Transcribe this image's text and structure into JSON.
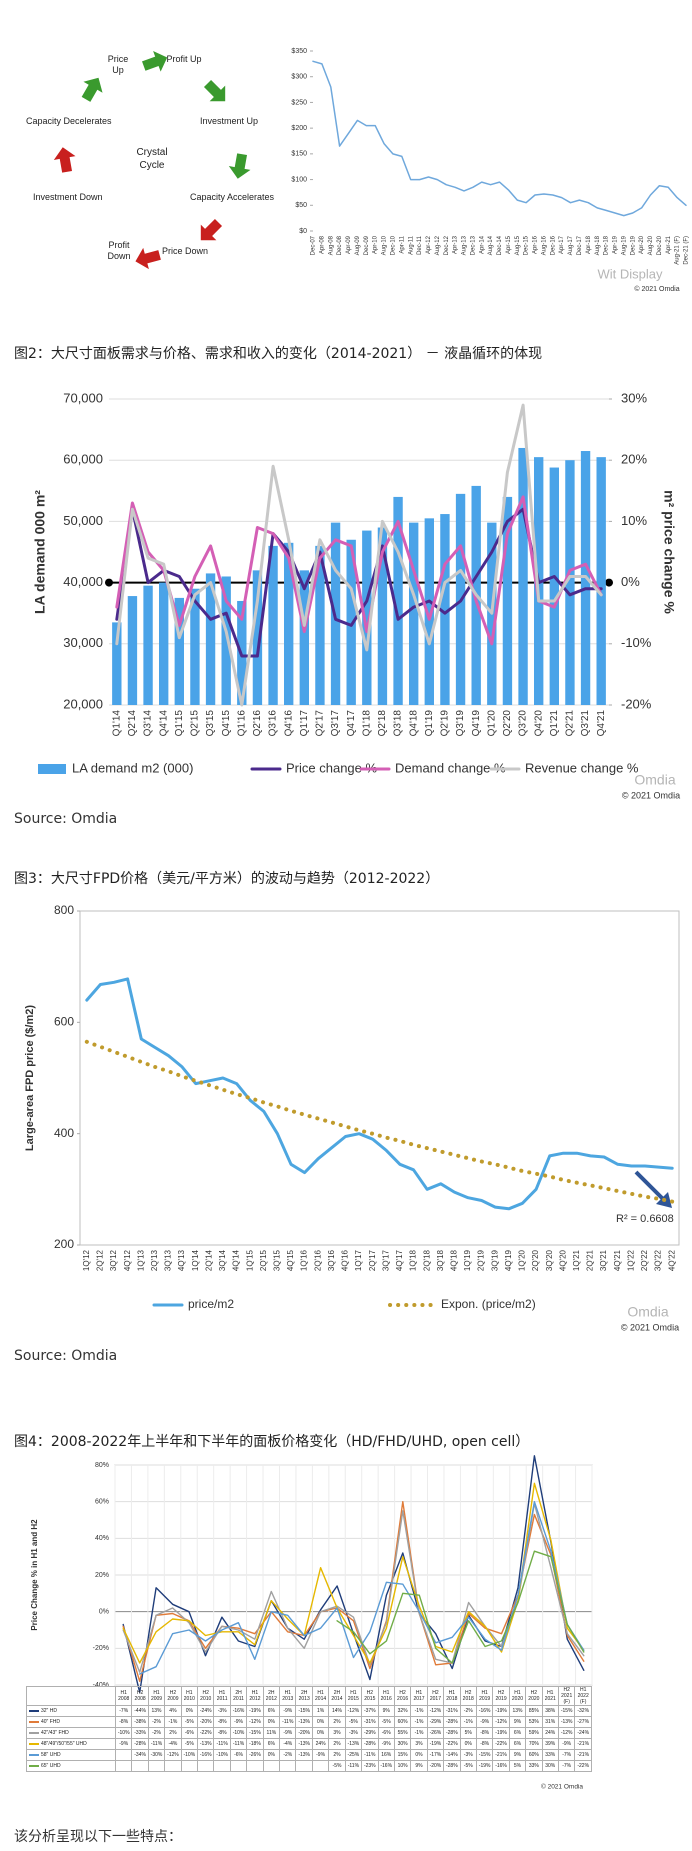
{
  "cycle_diagram": {
    "center": "Crystal Cycle",
    "labels": [
      "Price Up",
      "Profit Up",
      "Investment Up",
      "Capacity Accelerates",
      "Price Down",
      "Profit Down",
      "Investment Down",
      "Capacity Decelerates"
    ]
  },
  "captions": [
    "图2：大尺寸面板需求与价格、需求和收入的变化（2014-2021） － 液晶循环的体现",
    "图3：大尺寸FPD价格（美元/平方米）的波动与趋势（2012-2022）",
    "图4：2008-2022年上半年和下半年的面板价格变化（HD/FHD/UHD, open cell）"
  ],
  "sources": [
    "Source: Omdia",
    "Source: Omdia"
  ],
  "closing_text": "该分析呈现以下一些特点：",
  "chart_data": [
    {
      "type": "line",
      "categories": [
        "Dec-07",
        "Apr-08",
        "Aug-08",
        "Dec-08",
        "Apr-09",
        "Aug-09",
        "Dec-09",
        "Apr-10",
        "Aug-10",
        "Dec-10",
        "Apr-11",
        "Aug-11",
        "Dec-11",
        "Apr-12",
        "Aug-12",
        "Dec-12",
        "Apr-13",
        "Aug-13",
        "Dec-13",
        "Apr-14",
        "Aug-14",
        "Dec-14",
        "Apr-15",
        "Aug-15",
        "Dec-15",
        "Apr-16",
        "Aug-16",
        "Dec-16",
        "Apr-17",
        "Aug-17",
        "Dec-17",
        "Apr-18",
        "Aug-18",
        "Dec-18",
        "Apr-19",
        "Aug-19",
        "Dec-19",
        "Apr-20",
        "Aug-20",
        "Dec-20",
        "Apr-21",
        "Aug-21 (F)",
        "Dec-21 (F)"
      ],
      "values": [
        330,
        325,
        280,
        165,
        190,
        215,
        205,
        205,
        170,
        150,
        145,
        100,
        100,
        105,
        100,
        90,
        85,
        78,
        85,
        95,
        90,
        95,
        80,
        60,
        55,
        70,
        72,
        70,
        65,
        55,
        60,
        55,
        45,
        40,
        35,
        30,
        35,
        45,
        70,
        88,
        85,
        65,
        50
      ],
      "color": "#6fa8dc",
      "ylim": [
        0,
        350
      ],
      "yticks": [
        {
          "value": 0,
          "label": "$0"
        },
        {
          "value": 50,
          "label": "$50"
        },
        {
          "value": 100,
          "label": "$100"
        },
        {
          "value": 150,
          "label": "$150"
        },
        {
          "value": 200,
          "label": "$200"
        },
        {
          "value": 250,
          "label": "$250"
        },
        {
          "value": 300,
          "label": "$300"
        },
        {
          "value": 350,
          "label": "$350"
        }
      ],
      "grid": false,
      "watermark": "Wit Display",
      "copyright": "© 2021 Omdia"
    },
    {
      "type": "bar",
      "categories": [
        "Q1'14",
        "Q2'14",
        "Q3'14",
        "Q4'14",
        "Q1'15",
        "Q2'15",
        "Q3'15",
        "Q4'15",
        "Q1'16",
        "Q2'16",
        "Q3'16",
        "Q4'16",
        "Q1'17",
        "Q2'17",
        "Q3'17",
        "Q4'17",
        "Q1'18",
        "Q2'18",
        "Q3'18",
        "Q4'18",
        "Q1'19",
        "Q2'19",
        "Q3'19",
        "Q4'19",
        "Q1'20",
        "Q2'20",
        "Q3'20",
        "Q4'20",
        "Q1'21",
        "Q2'21",
        "Q3'21",
        "Q4'21"
      ],
      "series": [
        {
          "name": "LA demand m2 (000)",
          "type": "bar",
          "color": "#4aa3e8",
          "values": [
            33500,
            37800,
            39500,
            40000,
            37500,
            39000,
            41500,
            41000,
            37000,
            42000,
            46000,
            46500,
            42000,
            46000,
            49800,
            47000,
            48500,
            49000,
            54000,
            49800,
            50500,
            51200,
            54500,
            55800,
            49800,
            54000,
            62000,
            60500,
            58800,
            60000,
            61500,
            60500
          ]
        },
        {
          "name": "Price change %",
          "type": "line",
          "axis": "y2",
          "color": "#4b2a8c",
          "values": [
            -6,
            12,
            0,
            2,
            1,
            -3,
            -6,
            -5,
            -12,
            -12,
            8,
            5,
            -1,
            5,
            -6,
            -7,
            -3,
            6,
            -6,
            -4,
            -3,
            -5,
            -3,
            1,
            5,
            10,
            12,
            0,
            1,
            -2,
            -1,
            -1
          ]
        },
        {
          "name": "Demand change %",
          "type": "line",
          "axis": "y2",
          "color": "#d45fb5",
          "values": [
            -4,
            13,
            5,
            2,
            -7,
            1,
            6,
            -3,
            -6,
            9,
            8,
            4,
            -8,
            4,
            7,
            6,
            -8,
            5,
            10,
            2,
            -6,
            3,
            6,
            -3,
            -10,
            8,
            14,
            -3,
            -4,
            2,
            3,
            -2
          ]
        },
        {
          "name": "Revenue change %",
          "type": "line",
          "axis": "y2",
          "color": "#c8c8c8",
          "values": [
            -10,
            12,
            4,
            3,
            -9,
            -2,
            0,
            -8,
            -20,
            -3,
            19,
            7,
            -7,
            7,
            2,
            -1,
            -11,
            10,
            5,
            -2,
            -10,
            0,
            2,
            -2,
            -5,
            18,
            29,
            -3,
            -3,
            1,
            1,
            -2
          ]
        }
      ],
      "y_label": "LA demand 000 m²",
      "y2_label": "m² price change %",
      "ylim": [
        20000,
        70000
      ],
      "yticks": [
        {
          "value": 20000,
          "label": "20,000"
        },
        {
          "value": 30000,
          "label": "30,000"
        },
        {
          "value": 40000,
          "label": "40,000"
        },
        {
          "value": 50000,
          "label": "50,000"
        },
        {
          "value": 60000,
          "label": "60,000"
        },
        {
          "value": 70000,
          "label": "70,000"
        }
      ],
      "y2lim": [
        -20,
        30
      ],
      "y2ticks": [
        {
          "value": -20,
          "label": "-20%"
        },
        {
          "value": -10,
          "label": "-10%"
        },
        {
          "value": 0,
          "label": "0%"
        },
        {
          "value": 10,
          "label": "10%"
        },
        {
          "value": 20,
          "label": "20%"
        },
        {
          "value": 30,
          "label": "30%"
        }
      ],
      "grid": true,
      "legend": "bottom",
      "watermark": "Omdia",
      "copyright": "© 2021 Omdia"
    },
    {
      "type": "line",
      "categories": [
        "1Q'12",
        "2Q'12",
        "3Q'12",
        "4Q'12",
        "1Q'13",
        "2Q'13",
        "3Q'13",
        "4Q'13",
        "1Q'14",
        "2Q'14",
        "3Q'14",
        "4Q'14",
        "1Q'15",
        "2Q'15",
        "3Q'15",
        "4Q'15",
        "1Q'16",
        "2Q'16",
        "3Q'16",
        "4Q'16",
        "1Q'17",
        "2Q'17",
        "3Q'17",
        "4Q'17",
        "1Q'18",
        "2Q'18",
        "3Q'18",
        "4Q'18",
        "1Q'19",
        "2Q'19",
        "3Q'19",
        "4Q'19",
        "1Q'20",
        "2Q'20",
        "3Q'20",
        "4Q'20",
        "1Q'21",
        "2Q'21",
        "3Q'21",
        "4Q'21",
        "1Q'22",
        "2Q'22",
        "3Q'22",
        "4Q'22"
      ],
      "series": [
        {
          "name": "price/m2",
          "color": "#4da6e0",
          "values": [
            640,
            668,
            672,
            678,
            570,
            555,
            540,
            520,
            490,
            495,
            500,
            490,
            460,
            440,
            400,
            345,
            330,
            355,
            375,
            395,
            400,
            390,
            370,
            345,
            335,
            300,
            310,
            295,
            285,
            280,
            268,
            265,
            275,
            300,
            360,
            365,
            365,
            360,
            358,
            345,
            342,
            342,
            340,
            338
          ]
        },
        {
          "name": "Expon. (price/m2)",
          "color": "#c09b2c",
          "line_style": "dotted",
          "values": [
            565,
            556,
            547,
            538,
            529,
            520,
            512,
            503,
            495,
            487,
            479,
            471,
            464,
            456,
            449,
            441,
            434,
            427,
            420,
            413,
            406,
            400,
            393,
            387,
            380,
            374,
            368,
            362,
            356,
            350,
            345,
            339,
            333,
            328,
            323,
            317,
            312,
            307,
            302,
            297,
            292,
            287,
            283,
            278
          ]
        }
      ],
      "y_label": "Large-area FPD price ($/m2)",
      "ylim": [
        200,
        800
      ],
      "yticks": [
        200,
        400,
        600,
        800
      ],
      "grid": false,
      "legend": "bottom",
      "annotation": "R² = 0.6608",
      "watermark": "Omdia",
      "copyright": "© 2021 Omdia"
    },
    {
      "type": "line",
      "categories": [
        "H1 2008",
        "H2 2008",
        "H1 2009",
        "H2 2009",
        "H1 2010",
        "H2 2010",
        "H1 2011",
        "2H 2011",
        "H1 2012",
        "2H 2012",
        "H1 2013",
        "2H 2013",
        "H1 2014",
        "2H 2014",
        "H1 2015",
        "H2 2015",
        "H1 2016",
        "H2 2016",
        "H1 2017",
        "H2 2017",
        "H1 2018",
        "H2 2018",
        "H1 2019",
        "H2 2019",
        "H1 2020",
        "H2 2020",
        "H1 2021",
        "H2 2021 (F)",
        "H1 2022 (F)"
      ],
      "series": [
        {
          "name": "32\" HD",
          "color": "#1f3d7a",
          "values": [
            -7,
            -44,
            13,
            4,
            0,
            -24,
            -3,
            -16,
            -19,
            6,
            -9,
            -15,
            1,
            14,
            -12,
            -37,
            9,
            32,
            -1,
            -12,
            -31,
            -2,
            -16,
            -19,
            13,
            85,
            38,
            -15,
            -32
          ],
          "value_labels": [
            "-7%",
            "-44%",
            "13%",
            "4%",
            "0%",
            "-24%",
            "-3%",
            "-16%",
            "-19%",
            "6%",
            "-9%",
            "-15%",
            "1%",
            "14%",
            "-12%",
            "-37%",
            "9%",
            "32%",
            "-1%",
            "-12%",
            "-31%",
            "-2%",
            "-16%",
            "-19%",
            "13%",
            "85%",
            "38%",
            "-15%",
            "-32%"
          ]
        },
        {
          "name": "40\" FHD",
          "color": "#e07b39",
          "values": [
            -8,
            -38,
            -2,
            -1,
            -5,
            -20,
            -8,
            -9,
            -12,
            0,
            -11,
            -13,
            0,
            2,
            -5,
            -31,
            -5,
            60,
            -1,
            -29,
            -28,
            -1,
            -9,
            -12,
            9,
            53,
            31,
            -13,
            -27
          ],
          "value_labels": [
            "-8%",
            "-38%",
            "-2%",
            "-1%",
            "-5%",
            "-20%",
            "-8%",
            "-9%",
            "-12%",
            "0%",
            "-11%",
            "-13%",
            "0%",
            "2%",
            "-5%",
            "-31%",
            "-5%",
            "60%",
            "-1%",
            "-29%",
            "-28%",
            "-1%",
            "-9%",
            "-12%",
            "9%",
            "53%",
            "31%",
            "-13%",
            "-27%"
          ]
        },
        {
          "name": "42\"/43\" FHD",
          "color": "#a0a0a0",
          "values": [
            -10,
            -33,
            -2,
            2,
            -6,
            -22,
            -8,
            -10,
            -15,
            11,
            -9,
            -20,
            0,
            3,
            -3,
            -29,
            -6,
            55,
            -1,
            -26,
            -28,
            5,
            -8,
            -19,
            6,
            59,
            24,
            -12,
            -24
          ],
          "value_labels": [
            "-10%",
            "-33%",
            "-2%",
            "2%",
            "-6%",
            "-22%",
            "-8%",
            "-10%",
            "-15%",
            "11%",
            "-9%",
            "-20%",
            "0%",
            "3%",
            "-3%",
            "-29%",
            "-6%",
            "55%",
            "-1%",
            "-26%",
            "-28%",
            "5%",
            "-8%",
            "-19%",
            "6%",
            "59%",
            "24%",
            "-12%",
            "-24%"
          ]
        },
        {
          "name": "48\"/49\"/50\"/55\" UHD",
          "color": "#e6b800",
          "values": [
            -9,
            -28,
            -11,
            -4,
            -5,
            -13,
            -11,
            -11,
            -18,
            6,
            -4,
            -13,
            24,
            2,
            -13,
            -28,
            -9,
            30,
            3,
            -19,
            -22,
            0,
            -8,
            -22,
            6,
            70,
            39,
            -9,
            -21
          ],
          "value_labels": [
            "-9%",
            "-28%",
            "-11%",
            "-4%",
            "-5%",
            "-13%",
            "-11%",
            "-11%",
            "-18%",
            "6%",
            "-4%",
            "-13%",
            "24%",
            "2%",
            "-13%",
            "-28%",
            "-9%",
            "30%",
            "3%",
            "-19%",
            "-22%",
            "0%",
            "-8%",
            "-22%",
            "6%",
            "70%",
            "39%",
            "-9%",
            "-21%"
          ]
        },
        {
          "name": "58\" UHD",
          "color": "#5b9bd5",
          "values": [
            null,
            -34,
            -30,
            -12,
            -10,
            -16,
            -10,
            -6,
            -26,
            0,
            -2,
            -13,
            -9,
            2,
            -25,
            -11,
            16,
            15,
            0,
            -17,
            -14,
            -3,
            -15,
            -21,
            9,
            60,
            33,
            -7,
            -21
          ],
          "value_labels": [
            null,
            "-34%",
            "-30%",
            "-12%",
            "-10%",
            "-16%",
            "-10%",
            "-6%",
            "-26%",
            "0%",
            "-2%",
            "-13%",
            "-9%",
            "2%",
            "-25%",
            "-11%",
            "16%",
            "15%",
            "0%",
            "-17%",
            "-14%",
            "-3%",
            "-15%",
            "-21%",
            "9%",
            "60%",
            "33%",
            "-7%",
            "-21%"
          ]
        },
        {
          "name": "65\" UHD",
          "color": "#70ad47",
          "values": [
            null,
            null,
            null,
            null,
            null,
            null,
            null,
            null,
            null,
            null,
            null,
            null,
            null,
            -5,
            -11,
            -23,
            -16,
            10,
            9,
            -20,
            -28,
            -5,
            -19,
            -16,
            5,
            33,
            30,
            -7,
            -22
          ],
          "value_labels": [
            null,
            null,
            null,
            null,
            null,
            null,
            null,
            null,
            null,
            null,
            null,
            null,
            null,
            "-5%",
            "-11%",
            "-23%",
            "-16%",
            "10%",
            "9%",
            "-20%",
            "-28%",
            "-5%",
            "-19%",
            "-16%",
            "5%",
            "33%",
            "30%",
            "-7%",
            "-22%"
          ]
        }
      ],
      "y_label": "Price Change % in H1 and H2",
      "ylim": [
        -40,
        80
      ],
      "yticks": [
        {
          "value": -40,
          "label": "-40%"
        },
        {
          "value": -20,
          "label": "-20%"
        },
        {
          "value": 0,
          "label": "0%"
        },
        {
          "value": 20,
          "label": "20%"
        },
        {
          "value": 40,
          "label": "40%"
        },
        {
          "value": 60,
          "label": "60%"
        },
        {
          "value": 80,
          "label": "80%"
        }
      ],
      "grid": true,
      "copyright": "© 2021 Omdia"
    }
  ]
}
